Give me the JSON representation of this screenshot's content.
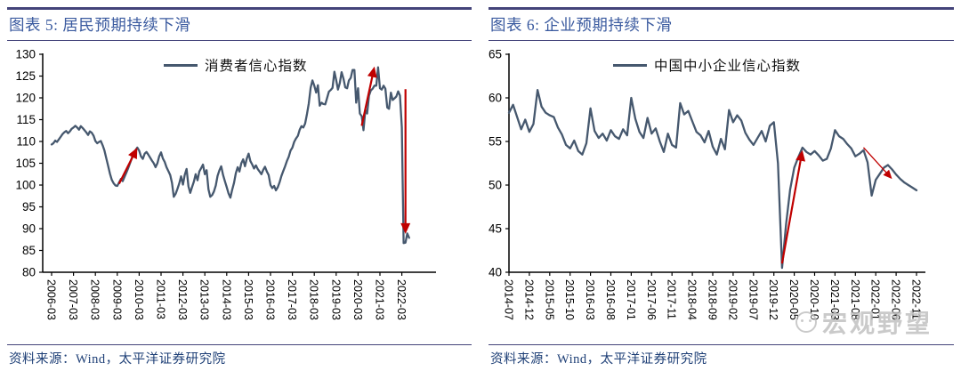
{
  "colors": {
    "title_blue": "#3A5A9F",
    "border_navy": "#44447A",
    "source_navy": "#1F4077",
    "line_slate": "#46586E",
    "arrow_red": "#C00000",
    "watermark_gray": "#BEBEBE",
    "axis_black": "#000000",
    "background": "#FFFFFF"
  },
  "panels": [
    {
      "source": "资料来源：Wind，太平洋证券研究院"
    },
    {
      "source": "资料来源：Wind，太平洋证券研究院"
    }
  ],
  "watermark": {
    "text": "宏观野望",
    "logo": "smiley-circle-logo"
  },
  "chart_data": [
    {
      "type": "line",
      "title": "图表 5:  居民预期持续下滑",
      "grid": false,
      "legend_position": "top-center",
      "ylim": [
        80,
        130
      ],
      "y_ticks": [
        80,
        85,
        90,
        95,
        100,
        105,
        110,
        115,
        120,
        125,
        130
      ],
      "x_tick_labels": [
        "2006-03",
        "2007-03",
        "2008-03",
        "2009-03",
        "2010-03",
        "2011-03",
        "2012-03",
        "2013-03",
        "2014-03",
        "2015-03",
        "2016-03",
        "2017-03",
        "2018-03",
        "2019-03",
        "2020-03",
        "2021-03",
        "2022-03"
      ],
      "series": [
        {
          "name": "消费者信心指数",
          "color": "#46586E",
          "x_start": "2006-03",
          "x_end": "2022-07",
          "frequency": "monthly",
          "values": [
            109.3,
            109.6,
            110.2,
            109.9,
            110.5,
            111.1,
            111.7,
            112.1,
            112.4,
            111.9,
            112.3,
            112.9,
            113.2,
            113.6,
            113.2,
            112.7,
            113.5,
            113.1,
            112.6,
            112.1,
            111.5,
            112.3,
            112.0,
            111.3,
            110.1,
            109.6,
            109.9,
            110.1,
            109.1,
            107.9,
            106.1,
            104.4,
            102.6,
            101.2,
            100.4,
            99.9,
            99.8,
            100.6,
            101.4,
            100.9,
            101.9,
            102.9,
            103.9,
            105.0,
            106.2,
            107.3,
            108.0,
            108.6,
            107.9,
            106.6,
            106.0,
            107.2,
            107.6,
            107.0,
            106.3,
            105.6,
            105.0,
            104.1,
            105.0,
            106.6,
            107.5,
            106.1,
            105.3,
            104.1,
            103.2,
            102.3,
            100.5,
            97.3,
            98.0,
            99.1,
            100.4,
            102.0,
            100.1,
            102.3,
            103.7,
            99.7,
            98.2,
            99.5,
            100.8,
            102.5,
            101.1,
            103.1,
            103.9,
            104.7,
            102.5,
            103.4,
            99.0,
            97.3,
            97.7,
            98.5,
            99.9,
            102.1,
            103.4,
            104.3,
            102.3,
            100.9,
            99.5,
            98.1,
            97.1,
            98.9,
            100.5,
            102.7,
            104.1,
            103.1,
            105.0,
            105.9,
            104.3,
            106.1,
            107.2,
            105.5,
            104.7,
            103.8,
            104.5,
            103.7,
            103.1,
            102.5,
            103.5,
            104.2,
            103.1,
            102.3,
            100.0,
            99.3,
            99.8,
            98.8,
            99.5,
            100.7,
            102.1,
            103.2,
            104.3,
            105.5,
            106.5,
            107.9,
            108.6,
            109.9,
            110.7,
            111.3,
            112.7,
            113.5,
            113.2,
            114.1,
            116.3,
            118.7,
            122.3,
            124.0,
            122.8,
            121.2,
            122.9,
            118.2,
            118.9,
            118.6,
            118.5,
            119.9,
            121.4,
            121.8,
            122.3,
            126.0,
            124.1,
            121.9,
            123.4,
            125.9,
            124.4,
            122.4,
            122.2,
            124.0,
            124.6,
            126.4,
            126.4,
            118.9,
            122.2,
            116.4,
            115.8,
            112.6,
            117.2,
            116.4,
            120.5,
            121.7,
            122.1,
            122.8,
            122.8,
            127.0,
            122.2,
            121.9,
            122.8,
            122.1,
            117.8,
            117.5,
            121.2,
            119.5,
            119.9,
            120.3,
            121.5,
            120.5,
            113.2,
            86.7,
            86.8,
            88.9,
            87.9
          ]
        }
      ],
      "annotations": [
        {
          "type": "arrow",
          "color": "#C00000",
          "width": 2.2,
          "from": [
            "2009-04",
            100.3
          ],
          "to": [
            "2010-02",
            108.6
          ]
        },
        {
          "type": "arrow",
          "color": "#C00000",
          "width": 2.2,
          "from": [
            "2020-05",
            113.6
          ],
          "to": [
            "2020-12",
            127.2
          ]
        },
        {
          "type": "arrow",
          "color": "#C00000",
          "width": 2.2,
          "from": [
            "2022-05",
            122.0
          ],
          "to": [
            "2022-05",
            88.8
          ]
        }
      ]
    },
    {
      "type": "line",
      "title": "图表 6:  企业预期持续下滑",
      "grid": false,
      "legend_position": "top-center",
      "ylim": [
        40,
        65
      ],
      "y_ticks": [
        40,
        45,
        50,
        55,
        60,
        65
      ],
      "x_tick_labels": [
        "2014-07",
        "2014-12",
        "2015-05",
        "2015-10",
        "2016-03",
        "2016-08",
        "2017-01",
        "2017-06",
        "2017-11",
        "2018-04",
        "2018-09",
        "2019-02",
        "2019-07",
        "2019-12",
        "2020-05",
        "2020-10",
        "2021-03",
        "2021-08",
        "2022-01",
        "2022-06",
        "2022-11"
      ],
      "series": [
        {
          "name": "中国中小企业信心指数",
          "color": "#46586E",
          "x_start": "2014-07",
          "x_end": "2022-11",
          "frequency": "monthly",
          "values": [
            58.3,
            59.2,
            57.8,
            56.4,
            57.5,
            56.1,
            57.0,
            60.9,
            59.0,
            58.3,
            58.0,
            57.8,
            56.6,
            55.8,
            54.6,
            54.2,
            55.1,
            53.9,
            53.5,
            54.8,
            58.8,
            56.2,
            55.4,
            55.9,
            55.1,
            56.3,
            55.6,
            55.3,
            56.4,
            55.7,
            60.0,
            57.6,
            56.1,
            55.4,
            57.7,
            55.9,
            56.5,
            55.0,
            53.8,
            55.9,
            54.6,
            54.3,
            59.4,
            58.1,
            58.5,
            57.3,
            56.1,
            55.7,
            54.9,
            56.2,
            54.4,
            53.5,
            55.3,
            54.1,
            58.6,
            57.2,
            58.0,
            57.4,
            56.0,
            55.2,
            54.6,
            55.4,
            56.2,
            55.0,
            56.8,
            57.2,
            52.5,
            40.5,
            45.5,
            49.5,
            52.0,
            53.2,
            54.3,
            53.8,
            53.5,
            53.9,
            53.4,
            52.8,
            53.0,
            54.2,
            56.3,
            55.6,
            55.3,
            54.7,
            54.2,
            53.3,
            53.6,
            54.0,
            52.6,
            48.8,
            50.6,
            51.3,
            52.0,
            52.3,
            51.8,
            51.2,
            50.7,
            50.3,
            50.0,
            49.7,
            49.4
          ]
        }
      ],
      "annotations": [
        {
          "type": "arrow",
          "color": "#C00000",
          "width": 2.2,
          "from": [
            "2020-02",
            41.0
          ],
          "to": [
            "2020-07",
            54.0
          ]
        },
        {
          "type": "arrow",
          "color": "#C00000",
          "width": 1.3,
          "from": [
            "2021-10",
            54.3
          ],
          "to": [
            "2022-05",
            50.7
          ]
        }
      ]
    }
  ]
}
